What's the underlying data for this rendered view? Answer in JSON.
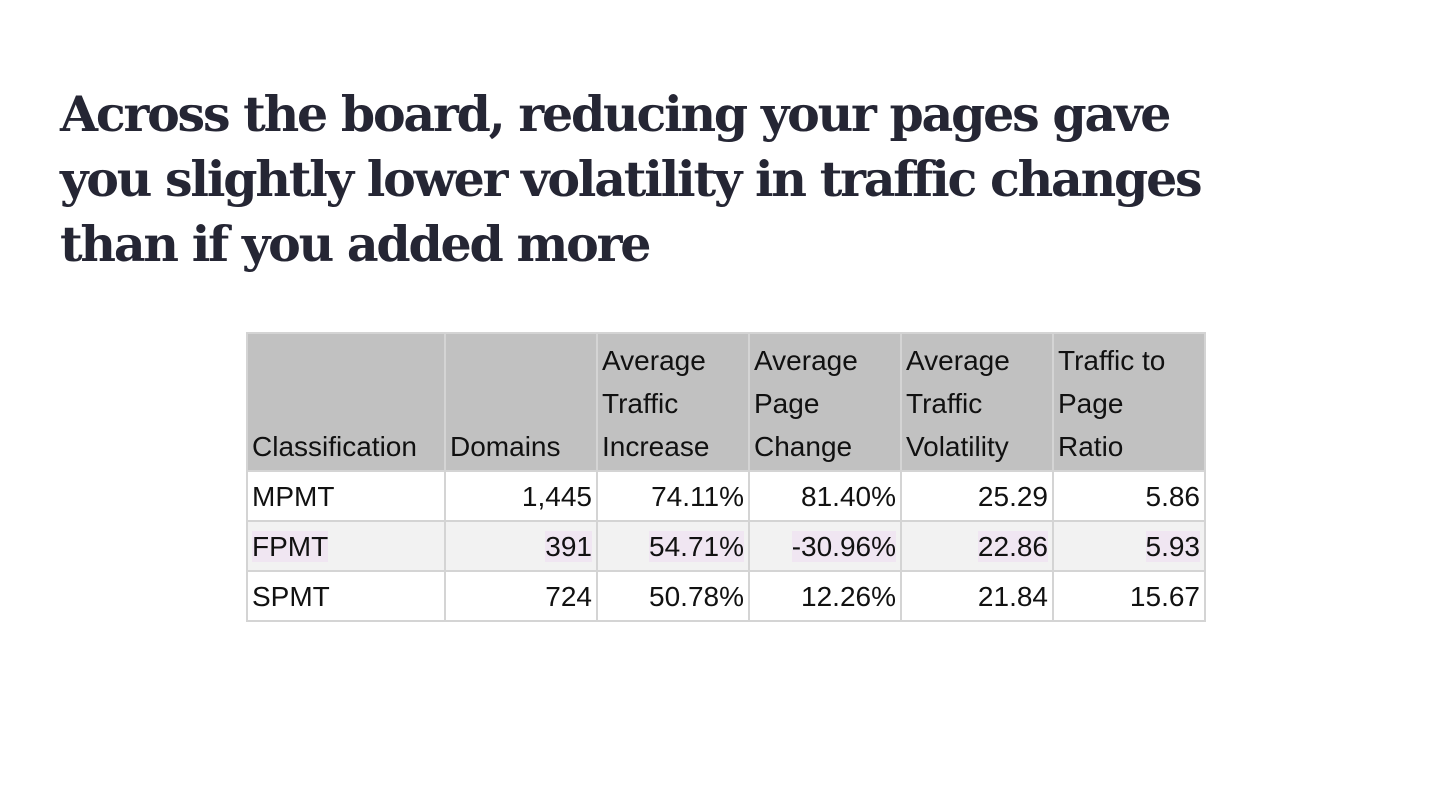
{
  "slide": {
    "title": "Across the board, reducing your pages gave you slightly lower volatility in traffic changes than if you added more"
  },
  "table": {
    "headers": {
      "classification": "Classification",
      "domains": "Domains",
      "avg_traffic_increase": [
        "Average",
        "Traffic",
        "Increase"
      ],
      "avg_page_change": [
        "Average",
        "Page",
        "Change"
      ],
      "avg_traffic_volatility": [
        "Average",
        "Traffic",
        "Volatility"
      ],
      "traffic_to_page_ratio": [
        "Traffic to",
        "Page",
        "Ratio"
      ]
    },
    "rows": [
      {
        "classification": "MPMT",
        "domains": "1,445",
        "avg_traffic_increase": "74.11%",
        "avg_page_change": "81.40%",
        "avg_traffic_volatility": "25.29",
        "traffic_to_page_ratio": "5.86"
      },
      {
        "classification": "FPMT",
        "domains": "391",
        "avg_traffic_increase": "54.71%",
        "avg_page_change": "-30.96%",
        "avg_traffic_volatility": "22.86",
        "traffic_to_page_ratio": "5.93"
      },
      {
        "classification": "SPMT",
        "domains": "724",
        "avg_traffic_increase": "50.78%",
        "avg_page_change": "12.26%",
        "avg_traffic_volatility": "21.84",
        "traffic_to_page_ratio": "15.67"
      }
    ]
  },
  "colors": {
    "title": "#252634",
    "header_bg": "#c1c1c1",
    "alt_row_bg": "#f2f2f2",
    "highlight": "#f0e6f2",
    "border": "#d4d4d4"
  }
}
